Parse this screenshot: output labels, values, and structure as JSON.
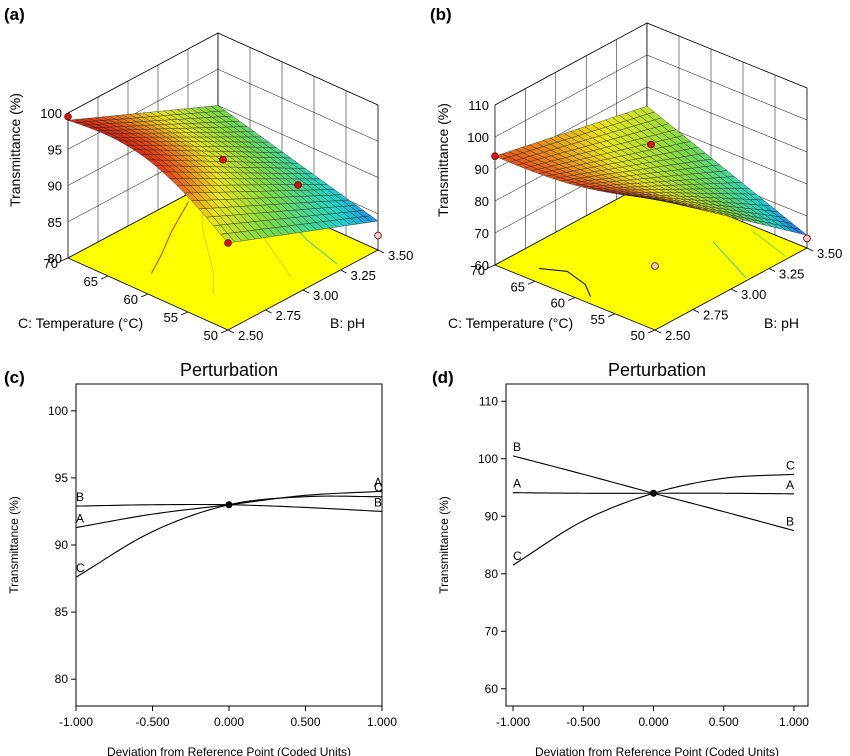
{
  "colors": {
    "surface_low": "#1e3cff",
    "surface_mid_low": "#22d3c9",
    "surface_mid": "#7cd94a",
    "surface_mid_high": "#e8e61e",
    "surface_high": "#e84a1a",
    "surface_top": "#c8140a",
    "floor": "#ffff00",
    "design_point": "#e01010",
    "design_point_below": "#f4c9c9",
    "curve": "#000000"
  },
  "chart_data": [
    {
      "id": "a",
      "panel_label": "(a)",
      "type": "surface3d",
      "z_axis": {
        "label": "Transmittance (%)",
        "ticks": [
          "80",
          "85",
          "90",
          "95",
          "100"
        ],
        "range": [
          80,
          100
        ]
      },
      "x_axis": {
        "label": "B: pH",
        "ticks": [
          "2.50",
          "2.75",
          "3.00",
          "3.25",
          "3.50"
        ],
        "range": [
          2.5,
          3.5
        ]
      },
      "y_axis": {
        "label": "C: Temperature (°C)",
        "ticks": [
          "50",
          "55",
          "60",
          "65",
          "70"
        ],
        "range": [
          50,
          70
        ]
      },
      "surface": {
        "ph_2.50_temp_50": 92,
        "ph_3.50_temp_50": 84,
        "ph_2.50_temp_70": 99,
        "ph_3.50_temp_70": 90,
        "peak": 99.5
      },
      "design_points": [
        {
          "ph": 2.5,
          "temp": 70,
          "value": 99.5,
          "above_surface": true
        },
        {
          "ph": 3.0,
          "temp": 60,
          "value": 93.0,
          "above_surface": true
        },
        {
          "ph": 2.5,
          "temp": 50,
          "value": 92.0,
          "above_surface": true
        },
        {
          "ph": 3.5,
          "temp": 60,
          "value": 84.0,
          "above_surface": true
        },
        {
          "ph": 3.5,
          "temp": 50,
          "value": 82.0,
          "above_surface": false
        }
      ]
    },
    {
      "id": "b",
      "panel_label": "(b)",
      "type": "surface3d",
      "z_axis": {
        "label": "Transmittance (%)",
        "ticks": [
          "60",
          "70",
          "80",
          "90",
          "100",
          "110"
        ],
        "range": [
          60,
          110
        ]
      },
      "x_axis": {
        "label": "B: pH",
        "ticks": [
          "2.50",
          "2.75",
          "3.00",
          "3.25",
          "3.50"
        ],
        "range": [
          2.5,
          3.5
        ]
      },
      "y_axis": {
        "label": "C: Temperature (°C)",
        "ticks": [
          "50",
          "55",
          "60",
          "65",
          "70"
        ],
        "range": [
          50,
          70
        ]
      },
      "surface": {
        "ph_2.50_temp_50": 101,
        "ph_3.50_temp_50": 64,
        "ph_2.50_temp_70": 94,
        "ph_3.50_temp_70": 84,
        "peak": 101
      },
      "design_points": [
        {
          "ph": 2.5,
          "temp": 70,
          "value": 94,
          "above_surface": true
        },
        {
          "ph": 3.0,
          "temp": 60,
          "value": 95,
          "above_surface": true
        },
        {
          "ph": 2.5,
          "temp": 50,
          "value": 80,
          "above_surface": false
        },
        {
          "ph": 3.5,
          "temp": 50,
          "value": 63,
          "above_surface": false
        }
      ]
    },
    {
      "id": "c",
      "panel_label": "(c)",
      "type": "line",
      "title": "Perturbation",
      "xlabel": "Deviation from Reference Point (Coded Units)",
      "ylabel": "Transmittance (%)",
      "xlim": [
        -1,
        1
      ],
      "ylim": [
        78,
        102
      ],
      "xticks": [
        -1,
        -0.5,
        0,
        0.5,
        1
      ],
      "xtick_labels": [
        "-1.000",
        "-0.500",
        "0.000",
        "0.500",
        "1.000"
      ],
      "yticks": [
        80,
        85,
        90,
        95,
        100
      ],
      "ytick_labels": [
        "80",
        "85",
        "90",
        "95",
        "100"
      ],
      "reference_point": {
        "x": 0,
        "y": 93.0
      },
      "series": [
        {
          "name": "A",
          "x": [
            -1,
            -0.5,
            0,
            0.5,
            1
          ],
          "y": [
            91.3,
            92.3,
            93.0,
            93.7,
            94.0
          ],
          "label_start": true,
          "label_end": true
        },
        {
          "name": "B",
          "x": [
            -1,
            -0.5,
            0,
            0.5,
            1
          ],
          "y": [
            92.9,
            93.0,
            93.0,
            92.8,
            92.5
          ],
          "label_start": true,
          "label_end": true
        },
        {
          "name": "C",
          "x": [
            -1,
            -0.5,
            0,
            0.5,
            1
          ],
          "y": [
            87.6,
            91.0,
            93.0,
            93.6,
            93.6
          ],
          "label_start": true,
          "label_end": true
        }
      ]
    },
    {
      "id": "d",
      "panel_label": "(d)",
      "type": "line",
      "title": "Perturbation",
      "xlabel": "Deviation from Reference Point (Coded Units)",
      "ylabel": "Transmittance (%)",
      "xlim": [
        -1.05,
        1.1
      ],
      "ylim": [
        57,
        113
      ],
      "xticks": [
        -1,
        -0.5,
        0,
        0.5,
        1
      ],
      "xtick_labels": [
        "-1.000",
        "-0.500",
        "0.000",
        "0.500",
        "1.000"
      ],
      "yticks": [
        60,
        70,
        80,
        90,
        100,
        110
      ],
      "ytick_labels": [
        "60",
        "70",
        "80",
        "90",
        "100",
        "110"
      ],
      "reference_point": {
        "x": 0,
        "y": 94.0
      },
      "series": [
        {
          "name": "A",
          "x": [
            -1,
            -0.5,
            0,
            0.5,
            1
          ],
          "y": [
            94.1,
            94.0,
            94.0,
            94.0,
            93.9
          ],
          "label_start": true,
          "label_end": true
        },
        {
          "name": "B",
          "x": [
            -1,
            -0.5,
            0,
            0.5,
            1
          ],
          "y": [
            100.5,
            97.3,
            94.0,
            90.8,
            87.5
          ],
          "label_start": true,
          "label_end": true
        },
        {
          "name": "C",
          "x": [
            -1,
            -0.5,
            0,
            0.5,
            1
          ],
          "y": [
            81.5,
            89.2,
            94.0,
            96.6,
            97.3
          ],
          "label_start": true,
          "label_end": true
        }
      ]
    }
  ]
}
